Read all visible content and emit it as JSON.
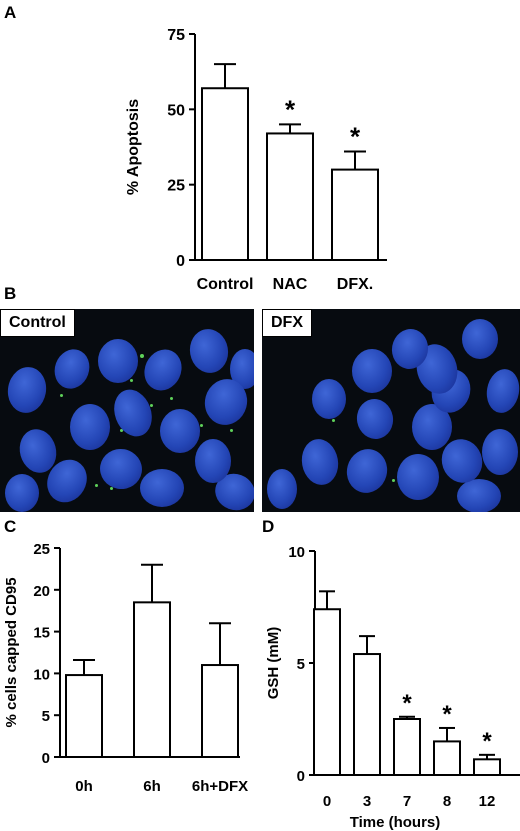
{
  "panels": {
    "a": {
      "label": "A"
    },
    "b": {
      "label": "B",
      "left_label": "Control",
      "right_label": "DFX"
    },
    "c": {
      "label": "C"
    },
    "d": {
      "label": "D"
    }
  },
  "chart_data": [
    {
      "type": "bar",
      "panel": "A",
      "categories": [
        "Control",
        "NAC",
        "DFX."
      ],
      "values": [
        57,
        42,
        30
      ],
      "errors": [
        8,
        3,
        6
      ],
      "significant": [
        false,
        true,
        true
      ],
      "ylabel": "% Apoptosis",
      "xlabel": "",
      "ylim": [
        0,
        75
      ],
      "yticks": [
        "0",
        "25",
        "50",
        "75"
      ],
      "marker": "*"
    },
    {
      "type": "bar",
      "panel": "C",
      "categories": [
        "0h",
        "6h",
        "6h+DFX"
      ],
      "values": [
        9.8,
        18.5,
        11
      ],
      "errors": [
        1.8,
        4.5,
        5
      ],
      "significant": [
        false,
        false,
        false
      ],
      "ylabel": "% cells capped CD95",
      "xlabel": "",
      "ylim": [
        0,
        25
      ],
      "yticks": [
        "0",
        "5",
        "10",
        "15",
        "20",
        "25"
      ],
      "marker": "*"
    },
    {
      "type": "bar",
      "panel": "D",
      "categories": [
        "0",
        "3",
        "7",
        "8",
        "12"
      ],
      "values": [
        7.4,
        5.4,
        2.5,
        1.5,
        0.7
      ],
      "errors": [
        0.8,
        0.8,
        0.1,
        0.6,
        0.2
      ],
      "significant": [
        false,
        false,
        true,
        true,
        true
      ],
      "ylabel": "GSH  (mM)",
      "xlabel": "Time (hours)",
      "ylim": [
        0,
        10
      ],
      "yticks": [
        "0",
        "5",
        "10"
      ],
      "marker": "*"
    }
  ]
}
